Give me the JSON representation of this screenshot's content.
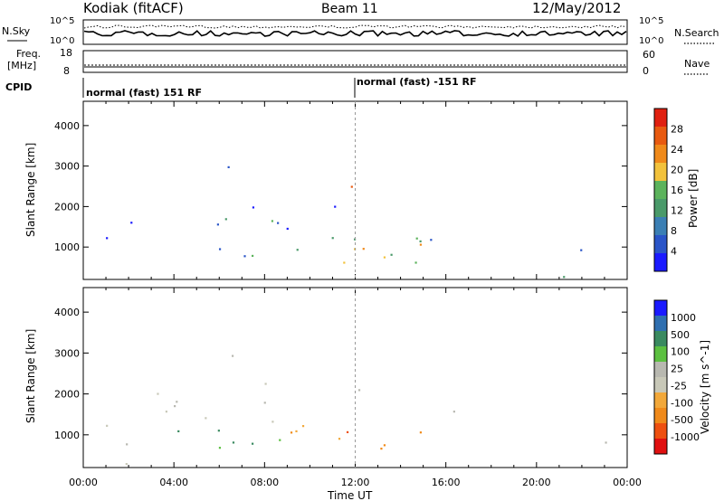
{
  "header": {
    "station": "Kodiak (fitACF)",
    "beam": "Beam 11",
    "date": "12/May/2012"
  },
  "top_panel": {
    "left_label": "N.Sky",
    "right_label": "N.Search",
    "left_ticks": [
      "10^5",
      "10^0"
    ],
    "right_ticks": [
      "10^5",
      "10^0"
    ]
  },
  "freq_panel": {
    "left_label_1": "Freq.",
    "left_label_2": "[MHz]",
    "right_label": "Nave",
    "left_ticks": [
      "18",
      "8"
    ],
    "right_ticks": [
      "60",
      "0"
    ]
  },
  "cpid_panel": {
    "label": "CPID",
    "mode_1": "normal (fast) 151 RF",
    "mode_2": "normal (fast) -151 RF"
  },
  "colors": {
    "power": [
      "#1a1aff",
      "#2a55c8",
      "#3b7fb4",
      "#4a9a6a",
      "#5cb35c",
      "#f2c23c",
      "#f08a1a",
      "#e85a10",
      "#e02010"
    ],
    "velocity": [
      "#e01010",
      "#ee5010",
      "#f08a1a",
      "#f2a83a",
      "#c8c8b8",
      "#b8b8b0",
      "#5cc040",
      "#3a8a60",
      "#2f6fb0",
      "#1a1aff"
    ]
  },
  "chart_data": [
    {
      "type": "heatmap",
      "title": "",
      "xlabel": "",
      "ylabel": "Slant Range [km]",
      "x_ticks": [
        "00:00",
        "04:00",
        "08:00",
        "12:00",
        "16:00",
        "20:00",
        "00:00"
      ],
      "y_ticks": [
        1000,
        2000,
        3000,
        4000
      ],
      "ylim": [
        200,
        4600
      ],
      "colorbar": {
        "label": "Power [dB]",
        "ticks": [
          "4",
          "8",
          "12",
          "16",
          "20",
          "24",
          "28"
        ]
      }
    },
    {
      "type": "heatmap",
      "title": "",
      "xlabel": "Time UT",
      "ylabel": "Slant Range [km]",
      "x_ticks": [
        "00:00",
        "04:00",
        "08:00",
        "12:00",
        "16:00",
        "20:00",
        "00:00"
      ],
      "y_ticks": [
        1000,
        2000,
        3000,
        4000
      ],
      "ylim": [
        200,
        4600
      ],
      "colorbar": {
        "label": "Velocity [m s^-1]",
        "ticks": [
          "1000",
          "500",
          "100",
          "25",
          "-25",
          "-100",
          "-500",
          "-1000"
        ]
      }
    }
  ]
}
